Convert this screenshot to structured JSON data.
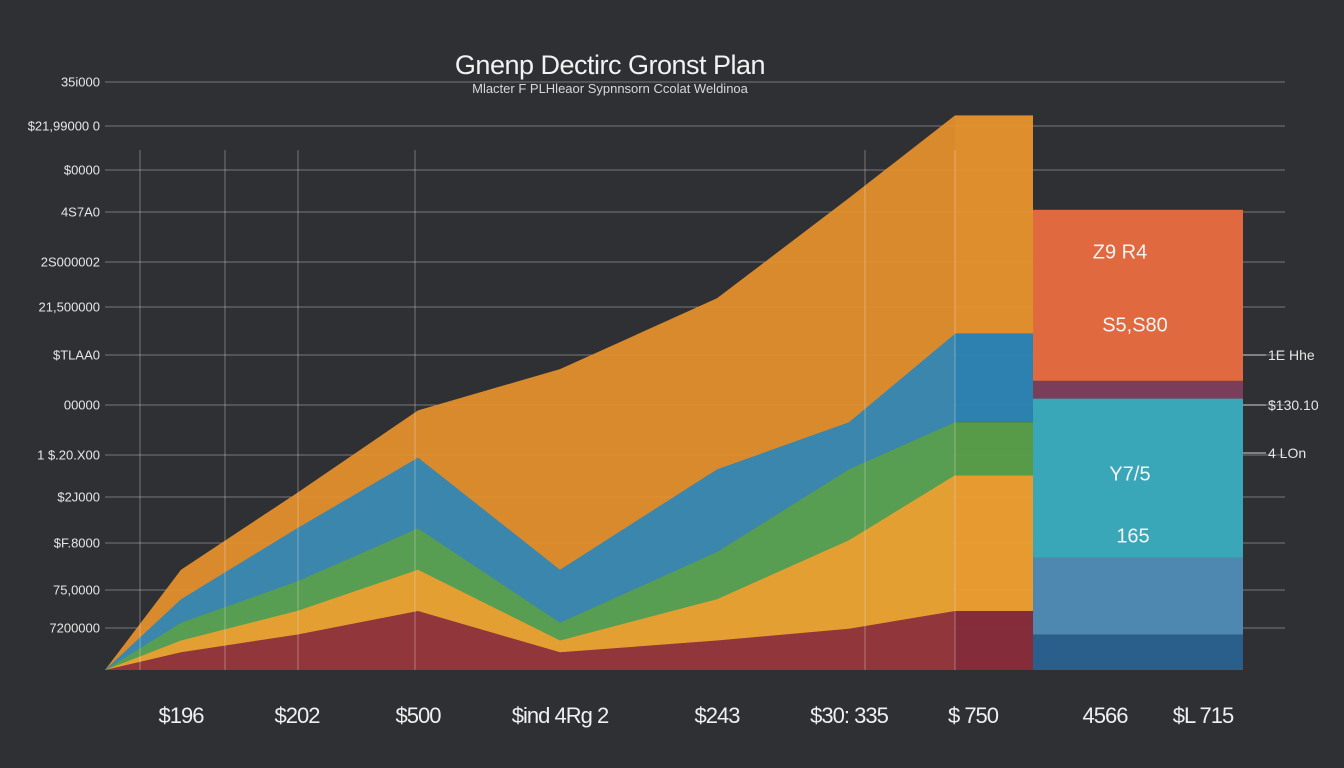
{
  "chart_data": {
    "type": "area",
    "title": "Gnenp Dectirc Gronst Plan",
    "subtitle": "Mlacter F PLHleaor Sypnnsorn Ccolat Weldinoa",
    "y_tick_labels": [
      "35i000",
      "$21,99000 0",
      "$0000",
      "4S7A0",
      "2S000002",
      "21,500000",
      "$TLAA0",
      "00000",
      "1 $.20.X00",
      "$2J000",
      "$F.8000",
      "75,0000",
      "7200000"
    ],
    "x_tick_labels": [
      "$196",
      "$202",
      "$500",
      "$ind 4Rg 2",
      "$243",
      "$30: 335",
      "$ 750",
      "4566",
      "$L 715"
    ],
    "right_tick_labels": [
      "1E Hhe",
      "$130.10",
      "4 LOn"
    ],
    "bar_labels": [
      "Z9 R4",
      "S5,S80",
      "Y7/5",
      "165"
    ],
    "value_scale": "relative level, 0 = baseline, 100 = top gridline",
    "grid": true,
    "legend": "none",
    "series": [
      {
        "color": "#e8932c",
        "values": [
          17,
          30,
          44,
          51,
          63,
          80,
          94,
          78
        ]
      },
      {
        "color": "#2d86b8",
        "values": [
          12,
          24,
          36,
          17,
          34,
          42,
          57,
          49
        ]
      },
      {
        "color": "#5aa04a",
        "values": [
          8,
          15,
          24,
          8,
          20,
          34,
          42,
          46
        ]
      },
      {
        "color": "#f0a030",
        "values": [
          5,
          10,
          17,
          5,
          12,
          22,
          33,
          19
        ]
      },
      {
        "color": "#8a2c3c",
        "values": [
          3,
          6,
          10,
          3,
          5,
          7,
          10,
          6
        ]
      }
    ],
    "top_bar_colors": [
      "#e8932c",
      "#e0693f"
    ],
    "final_bar_layer_colors": [
      "#e0693f",
      "#7a3d5a",
      "#3aa7b8",
      "#4e88b0",
      "#2a5f8c"
    ]
  }
}
